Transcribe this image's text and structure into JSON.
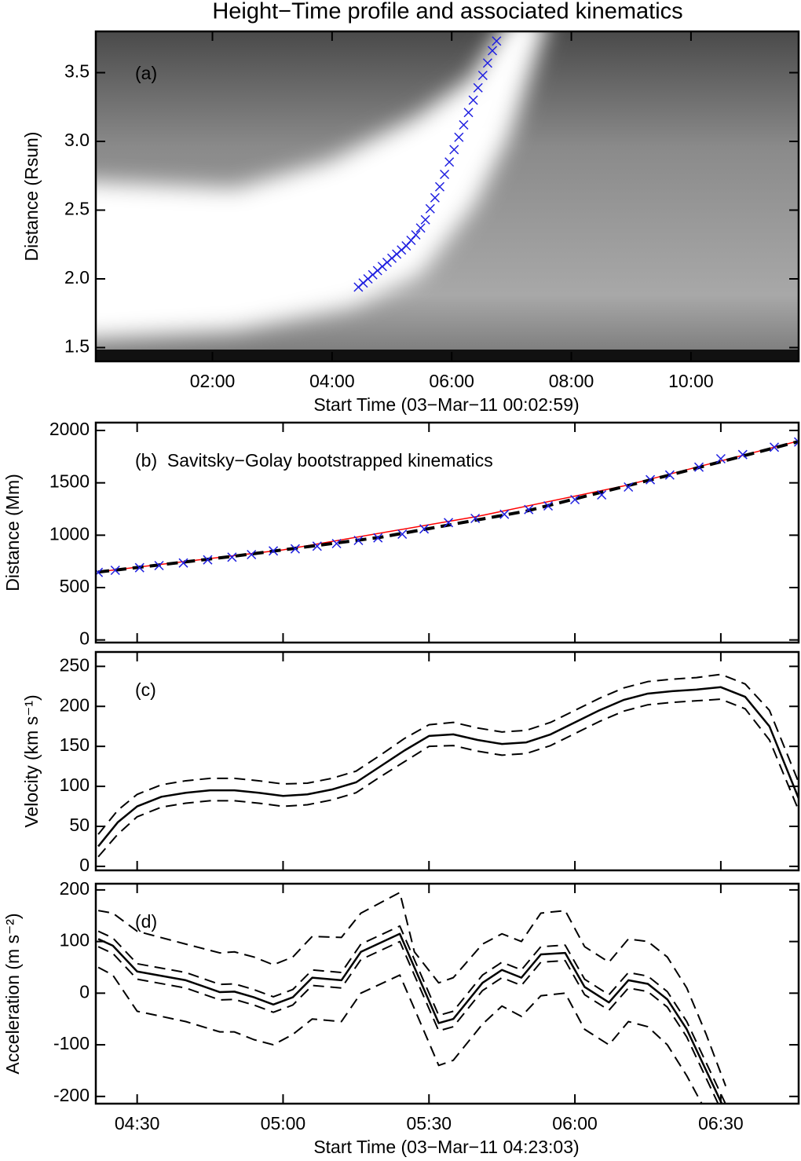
{
  "title": "Height−Time profile and associated kinematics",
  "chart_data": [
    {
      "type": "scatter",
      "annotation": "(a)",
      "ylabel": "Distance (Rsun)",
      "xlabel": "Start Time (03−Mar−11 00:02:59)",
      "xlim": [
        0.05,
        11.8
      ],
      "ylim": [
        1.4,
        3.8
      ],
      "xticks": [
        {
          "value": 2,
          "label": "02:00"
        },
        {
          "value": 4,
          "label": "04:00"
        },
        {
          "value": 6,
          "label": "06:00"
        },
        {
          "value": 8,
          "label": "08:00"
        },
        {
          "value": 10,
          "label": "10:00"
        }
      ],
      "yticks": [
        {
          "value": 1.5,
          "label": "1.5"
        },
        {
          "value": 2.0,
          "label": "2.0"
        },
        2.5,
        {
          "value": 3.0,
          "label": "3.0"
        },
        3.5
      ],
      "x": [
        4.44,
        4.52,
        4.6,
        4.68,
        4.76,
        4.84,
        4.92,
        5.0,
        5.08,
        5.16,
        5.24,
        5.32,
        5.4,
        5.48,
        5.56,
        5.64,
        5.72,
        5.8,
        5.88,
        5.96,
        6.04,
        6.12,
        6.2,
        6.28,
        6.36,
        6.44,
        6.52,
        6.6,
        6.68,
        6.75
      ],
      "series": [
        {
          "color": "#1f1fe0",
          "marker": "x",
          "values": [
            1.94,
            1.97,
            2.0,
            2.03,
            2.06,
            2.09,
            2.12,
            2.15,
            2.18,
            2.21,
            2.24,
            2.28,
            2.32,
            2.37,
            2.43,
            2.51,
            2.59,
            2.67,
            2.76,
            2.85,
            2.94,
            3.03,
            3.12,
            3.21,
            3.3,
            3.39,
            3.48,
            3.57,
            3.66,
            3.73
          ]
        }
      ]
    },
    {
      "type": "line",
      "annotation": "(b)  Savitsky−Golay bootstrapped kinematics",
      "ylabel": "Distance (Mm)",
      "xlim": [
        21.5,
        166
      ],
      "ylim": [
        -25,
        2075
      ],
      "yticks": [
        0,
        500,
        1000,
        1500,
        2000
      ],
      "x": [
        22,
        25.5,
        30.5,
        34.5,
        39.5,
        44.5,
        49.5,
        53.5,
        58,
        62.5,
        67,
        71,
        75.5,
        79.5,
        84.5,
        89,
        94,
        99.5,
        105.5,
        110.5,
        114.5,
        120,
        125.5,
        131,
        135.5,
        139.5,
        145.5,
        150,
        154.5,
        161,
        166
      ],
      "series": [
        {
          "color": "#ff0000",
          "width": 1.5,
          "x": [
            22,
            60,
            100,
            130,
            166
          ],
          "values": [
            650,
            860,
            1180,
            1470,
            1900
          ]
        },
        {
          "color": "#000000",
          "width": 4,
          "dash": true,
          "x": [
            22,
            50,
            80,
            110,
            140,
            166
          ],
          "values": [
            648,
            800,
            980,
            1230,
            1580,
            1895
          ]
        },
        {
          "color": "#1f1fe0",
          "marker": "x",
          "values": [
            645,
            665,
            690,
            710,
            735,
            765,
            790,
            815,
            850,
            870,
            895,
            920,
            950,
            975,
            1010,
            1060,
            1120,
            1160,
            1200,
            1245,
            1280,
            1340,
            1385,
            1460,
            1530,
            1575,
            1650,
            1730,
            1770,
            1840,
            1890
          ]
        }
      ]
    },
    {
      "type": "line",
      "annotation": "(c)",
      "ylabel": "Velocity (km s⁻¹)",
      "xlim": [
        21.5,
        166
      ],
      "ylim": [
        -5,
        268
      ],
      "yticks": [
        0,
        50,
        100,
        150,
        200,
        250
      ],
      "x": [
        22,
        26,
        30,
        35,
        40,
        45,
        50,
        55,
        60,
        65,
        70,
        75,
        80,
        85,
        90,
        95,
        100,
        105,
        110,
        115,
        120,
        125,
        130,
        135,
        140,
        145,
        150,
        155,
        160,
        166
      ],
      "series": [
        {
          "color": "#000000",
          "width": 2.5,
          "values": [
            25,
            55,
            75,
            87,
            92,
            95,
            95,
            92,
            88,
            90,
            96,
            105,
            125,
            145,
            163,
            165,
            158,
            153,
            155,
            165,
            180,
            195,
            208,
            216,
            219,
            221,
            224,
            212,
            175,
            85
          ]
        },
        {
          "color": "#000000",
          "width": 2,
          "dash": true,
          "values": [
            40,
            70,
            90,
            102,
            107,
            110,
            110,
            107,
            103,
            104,
            110,
            119,
            139,
            160,
            177,
            180,
            173,
            168,
            170,
            180,
            195,
            210,
            223,
            231,
            234,
            236,
            240,
            228,
            195,
            105
          ]
        },
        {
          "color": "#000000",
          "width": 2,
          "dash": true,
          "values": [
            12,
            40,
            62,
            74,
            79,
            82,
            82,
            79,
            75,
            77,
            83,
            92,
            112,
            131,
            150,
            151,
            144,
            139,
            141,
            151,
            166,
            181,
            194,
            202,
            205,
            207,
            209,
            197,
            158,
            70
          ]
        }
      ]
    },
    {
      "type": "line",
      "annotation": "(d)",
      "ylabel": "Acceleration (m s⁻²)",
      "xlabel": "Start Time (03−Mar−11 04:23:03)",
      "xlim": [
        21.5,
        166
      ],
      "ylim": [
        -214,
        212
      ],
      "xticks": [
        {
          "value": 30,
          "label": "04:30"
        },
        {
          "value": 60,
          "label": "05:00"
        },
        {
          "value": 90,
          "label": "05:30"
        },
        {
          "value": 120,
          "label": "06:00"
        },
        {
          "value": 150,
          "label": "06:30"
        }
      ],
      "yticks": [
        -200,
        -100,
        0,
        100,
        200
      ],
      "x": [
        22,
        25,
        30,
        40,
        47,
        50,
        54,
        58,
        62,
        66,
        72,
        76,
        84,
        87,
        92,
        95,
        101,
        105,
        109,
        113,
        118,
        122,
        127,
        131,
        135,
        139,
        143,
        147,
        151
      ],
      "series": [
        {
          "color": "#000000",
          "width": 2.5,
          "values": [
            105,
            92,
            42,
            25,
            2,
            3,
            -8,
            -22,
            -8,
            30,
            25,
            80,
            115,
            50,
            -58,
            -50,
            20,
            45,
            30,
            75,
            78,
            12,
            -18,
            25,
            18,
            -12,
            -70,
            -150,
            -230
          ]
        },
        {
          "color": "#000000",
          "width": 2,
          "dash": true,
          "values": [
            120,
            107,
            57,
            40,
            17,
            18,
            7,
            -7,
            7,
            45,
            40,
            95,
            130,
            65,
            -43,
            -35,
            35,
            60,
            45,
            90,
            93,
            27,
            -3,
            40,
            33,
            3,
            -55,
            -135,
            -215
          ]
        },
        {
          "color": "#000000",
          "width": 2,
          "dash": true,
          "values": [
            90,
            77,
            27,
            10,
            -13,
            -12,
            -23,
            -37,
            -23,
            15,
            10,
            65,
            100,
            35,
            -73,
            -65,
            5,
            30,
            15,
            60,
            63,
            -3,
            -33,
            10,
            3,
            -27,
            -85,
            -165,
            -245
          ]
        },
        {
          "color": "#000000",
          "width": 2,
          "dash": true,
          "values": [
            160,
            155,
            120,
            95,
            78,
            80,
            70,
            55,
            70,
            110,
            108,
            155,
            195,
            80,
            20,
            30,
            95,
            115,
            100,
            155,
            160,
            90,
            60,
            105,
            100,
            70,
            10,
            -80,
            -180
          ]
        },
        {
          "color": "#000000",
          "width": 2,
          "dash": true,
          "values": [
            50,
            35,
            -35,
            -55,
            -75,
            -75,
            -90,
            -100,
            -80,
            -50,
            -55,
            0,
            35,
            -30,
            -140,
            -130,
            -60,
            -25,
            -45,
            -5,
            0,
            -70,
            -100,
            -55,
            -65,
            -100,
            -160,
            -230,
            -300
          ]
        }
      ]
    }
  ]
}
